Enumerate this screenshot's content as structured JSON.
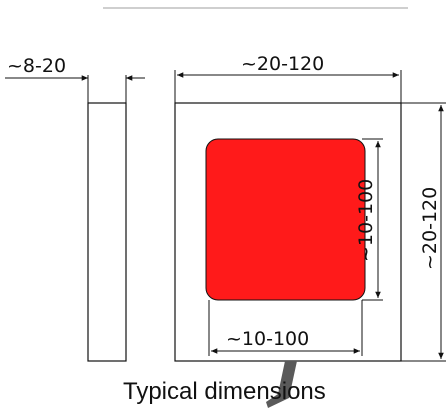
{
  "diagram": {
    "caption": "Typical dimensions",
    "labels": {
      "thickness": "~8-20",
      "outer_width": "~20-120",
      "outer_height": "~20-120",
      "inner_height": "~10-100",
      "inner_width": "~10-100"
    },
    "colors": {
      "line": "#111111",
      "sensor_fill": "#ff1a1a",
      "cable": "#5a5a5a",
      "top_rule": "#bfbfbf"
    }
  }
}
